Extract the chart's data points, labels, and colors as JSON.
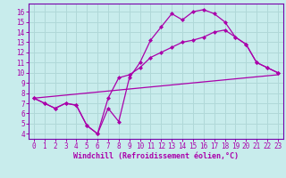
{
  "xlabel": "Windchill (Refroidissement éolien,°C)",
  "bg_color": "#c8ecec",
  "grid_color": "#b0d8d8",
  "line_color": "#aa00aa",
  "spine_color": "#7700aa",
  "xlim": [
    -0.5,
    23.5
  ],
  "ylim": [
    3.5,
    16.8
  ],
  "xticks": [
    0,
    1,
    2,
    3,
    4,
    5,
    6,
    7,
    8,
    9,
    10,
    11,
    12,
    13,
    14,
    15,
    16,
    17,
    18,
    19,
    20,
    21,
    22,
    23
  ],
  "yticks": [
    4,
    5,
    6,
    7,
    8,
    9,
    10,
    11,
    12,
    13,
    14,
    15,
    16
  ],
  "series1_x": [
    0,
    1,
    2,
    3,
    4,
    5,
    6,
    7,
    8,
    9,
    10,
    11,
    12,
    13,
    14,
    15,
    16,
    17,
    18,
    19,
    20,
    21,
    22,
    23
  ],
  "series1_y": [
    7.5,
    7.0,
    6.5,
    7.0,
    6.8,
    4.8,
    4.0,
    6.5,
    5.2,
    9.5,
    11.0,
    13.2,
    14.5,
    15.8,
    15.2,
    16.0,
    16.2,
    15.8,
    15.0,
    13.5,
    12.8,
    11.0,
    10.5,
    10.0
  ],
  "series2_x": [
    0,
    1,
    2,
    3,
    4,
    5,
    6,
    7,
    8,
    9,
    10,
    11,
    12,
    13,
    14,
    15,
    16,
    17,
    18,
    19,
    20,
    21,
    22,
    23
  ],
  "series2_y": [
    7.5,
    7.0,
    6.5,
    7.0,
    6.8,
    4.8,
    4.0,
    7.5,
    9.5,
    9.8,
    10.5,
    11.5,
    12.0,
    12.5,
    13.0,
    13.2,
    13.5,
    14.0,
    14.2,
    13.5,
    12.8,
    11.0,
    10.5,
    10.0
  ],
  "series3_x": [
    0,
    23
  ],
  "series3_y": [
    7.5,
    9.8
  ]
}
